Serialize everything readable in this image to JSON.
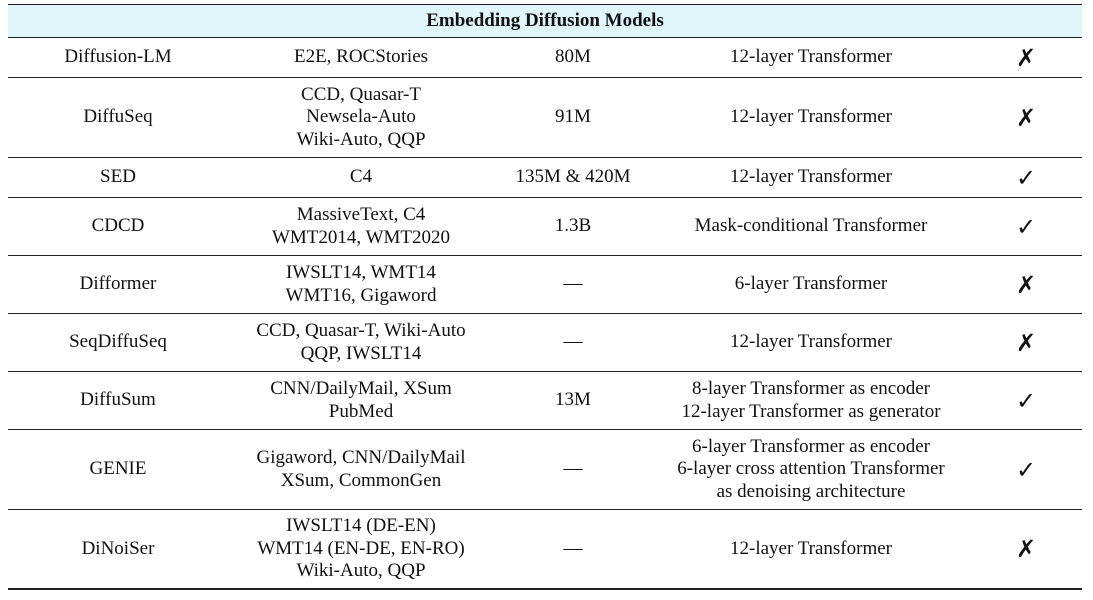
{
  "title": "Embedding Diffusion Models",
  "rows": [
    {
      "model": "Diffusion-LM",
      "datasets": [
        "E2E, ROCStories"
      ],
      "params": "80M",
      "architecture": [
        "12-layer Transformer"
      ],
      "mark": "✗"
    },
    {
      "model": "DiffuSeq",
      "datasets": [
        "CCD, Quasar-T",
        "Newsela-Auto",
        "Wiki-Auto, QQP"
      ],
      "params": "91M",
      "architecture": [
        "12-layer Transformer"
      ],
      "mark": "✗"
    },
    {
      "model": "SED",
      "datasets": [
        "C4"
      ],
      "params": "135M & 420M",
      "architecture": [
        "12-layer Transformer"
      ],
      "mark": "✓"
    },
    {
      "model": "CDCD",
      "datasets": [
        "MassiveText, C4",
        "WMT2014, WMT2020"
      ],
      "params": "1.3B",
      "architecture": [
        "Mask-conditional Transformer"
      ],
      "mark": "✓"
    },
    {
      "model": "Difformer",
      "datasets": [
        "IWSLT14, WMT14",
        "WMT16, Gigaword"
      ],
      "params": "—",
      "architecture": [
        "6-layer Transformer"
      ],
      "mark": "✗"
    },
    {
      "model": "SeqDiffuSeq",
      "datasets": [
        "CCD, Quasar-T, Wiki-Auto",
        "QQP, IWSLT14"
      ],
      "params": "—",
      "architecture": [
        "12-layer Transformer"
      ],
      "mark": "✗"
    },
    {
      "model": "DiffuSum",
      "datasets": [
        "CNN/DailyMail, XSum",
        "PubMed"
      ],
      "params": "13M",
      "architecture": [
        "8-layer Transformer as encoder",
        "12-layer Transformer as generator"
      ],
      "mark": "✓"
    },
    {
      "model": "GENIE",
      "datasets": [
        "Gigaword, CNN/DailyMail",
        "XSum, CommonGen"
      ],
      "params": "—",
      "architecture": [
        "6-layer Transformer as encoder",
        "6-layer cross attention Transformer",
        "as denoising architecture"
      ],
      "mark": "✓"
    },
    {
      "model": "DiNoiSer",
      "datasets": [
        "IWSLT14 (DE-EN)",
        "WMT14 (EN-DE, EN-RO)",
        "Wiki-Auto, QQP"
      ],
      "params": "—",
      "architecture": [
        "12-layer Transformer"
      ],
      "mark": "✗"
    }
  ]
}
